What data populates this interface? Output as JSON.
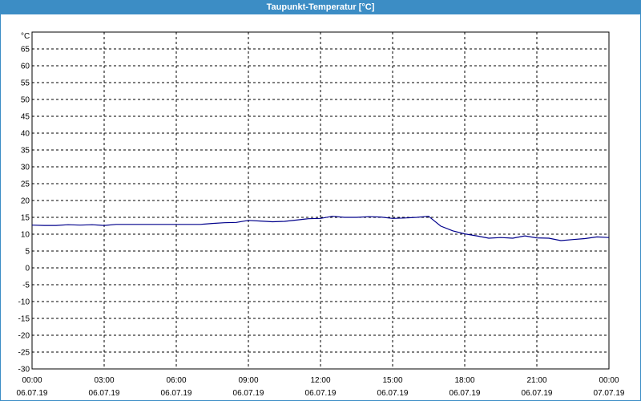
{
  "window": {
    "title": "Taupunkt-Temperatur [°C]"
  },
  "chart_data": {
    "type": "line",
    "title": "Taupunkt-Temperatur [°C]",
    "ylabel": "°C",
    "xlabel": "",
    "ylim": [
      -30,
      70
    ],
    "yticks": [
      65,
      60,
      55,
      50,
      45,
      40,
      35,
      30,
      25,
      20,
      15,
      10,
      5,
      0,
      -5,
      -10,
      -15,
      -20,
      -25,
      -30
    ],
    "xlim": [
      0,
      24
    ],
    "xticks": [
      {
        "x": 0,
        "time": "00:00",
        "date": "06.07.19"
      },
      {
        "x": 3,
        "time": "03:00",
        "date": "06.07.19"
      },
      {
        "x": 6,
        "time": "06:00",
        "date": "06.07.19"
      },
      {
        "x": 9,
        "time": "09:00",
        "date": "06.07.19"
      },
      {
        "x": 12,
        "time": "12:00",
        "date": "06.07.19"
      },
      {
        "x": 15,
        "time": "15:00",
        "date": "06.07.19"
      },
      {
        "x": 18,
        "time": "18:00",
        "date": "06.07.19"
      },
      {
        "x": 21,
        "time": "21:00",
        "date": "06.07.19"
      },
      {
        "x": 24,
        "time": "00:00",
        "date": "07.07.19"
      }
    ],
    "grid": true,
    "line_color": "#00008b",
    "series": [
      {
        "x": [
          0,
          0.5,
          1.0,
          1.5,
          2.0,
          2.5,
          3.0,
          3.5,
          4.0,
          5.0,
          6.0,
          7.0,
          7.5,
          8.0,
          8.5,
          9.0,
          9.5,
          10.0,
          10.5,
          11.0,
          11.5,
          12.0,
          12.5,
          13.0,
          13.5,
          14.0,
          14.5,
          15.0,
          15.5,
          16.0,
          16.5,
          17.0,
          17.5,
          18.0,
          18.5,
          19.0,
          19.5,
          20.0,
          20.5,
          21.0,
          21.5,
          22.0,
          22.5,
          23.0,
          23.5,
          24.0
        ],
        "y": [
          12.7,
          12.6,
          12.6,
          12.8,
          12.7,
          12.8,
          12.6,
          12.9,
          12.9,
          12.9,
          12.9,
          12.9,
          13.2,
          13.4,
          13.5,
          14.1,
          13.9,
          13.7,
          13.8,
          14.2,
          14.6,
          14.7,
          15.3,
          15.0,
          15.0,
          15.2,
          15.1,
          14.7,
          14.8,
          15.0,
          15.3,
          12.4,
          11.0,
          10.1,
          9.5,
          8.8,
          9.0,
          8.8,
          9.5,
          8.9,
          8.8,
          8.1,
          8.4,
          8.7,
          9.2,
          9.0
        ]
      }
    ]
  }
}
